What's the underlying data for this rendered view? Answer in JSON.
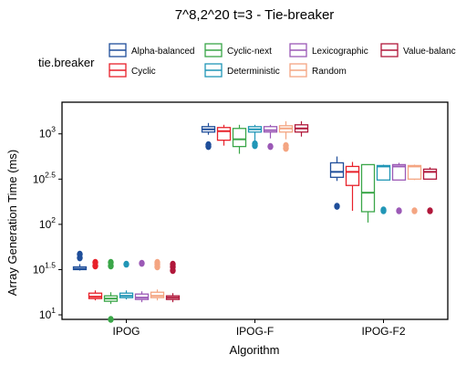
{
  "chart_data": {
    "type": "box",
    "title": "7^8,2^20 t=3 - Tie-breaker",
    "xlabel": "Algorithm",
    "ylabel": "Array Generation Time (ms)",
    "y_scale": "log10",
    "ylim": [
      0.95,
      3.35
    ],
    "y_ticks": [
      {
        "value": 1,
        "base": "10",
        "exp": "1"
      },
      {
        "value": 1.5,
        "base": "10",
        "exp": "1.5"
      },
      {
        "value": 2,
        "base": "10",
        "exp": "2"
      },
      {
        "value": 2.5,
        "base": "10",
        "exp": "2.5"
      },
      {
        "value": 3,
        "base": "10",
        "exp": "3"
      }
    ],
    "categories": [
      "IPOG",
      "IPOG-F",
      "IPOG-F2"
    ],
    "legend": {
      "title": "tie.breaker",
      "position": "top",
      "entries": [
        "Alpha-balanced",
        "Cyclic",
        "Cyclic-next",
        "Deterministic",
        "Lexicographic",
        "Random",
        "Value-balanced"
      ]
    },
    "series": [
      {
        "name": "Alpha-balanced",
        "color": "#1f4e9a",
        "boxes": [
          {
            "whisker_low": 1.49,
            "q1": 1.5,
            "median": 1.51,
            "q3": 1.53,
            "whisker_high": 1.56,
            "outliers": [
              1.63,
              1.67
            ]
          },
          {
            "whisker_low": 2.99,
            "q1": 3.02,
            "median": 3.05,
            "q3": 3.08,
            "whisker_high": 3.12,
            "outliers": [
              2.88,
              2.86
            ]
          },
          {
            "whisker_low": 2.48,
            "q1": 2.52,
            "median": 2.58,
            "q3": 2.68,
            "whisker_high": 2.75,
            "outliers": [
              2.2
            ]
          }
        ]
      },
      {
        "name": "Cyclic",
        "color": "#e8212a",
        "boxes": [
          {
            "whisker_low": 1.16,
            "q1": 1.18,
            "median": 1.2,
            "q3": 1.24,
            "whisker_high": 1.27,
            "outliers": [
              1.54,
              1.58
            ]
          },
          {
            "whisker_low": 2.87,
            "q1": 2.93,
            "median": 3.03,
            "q3": 3.07,
            "whisker_high": 3.1,
            "outliers": []
          },
          {
            "whisker_low": 2.15,
            "q1": 2.43,
            "median": 2.58,
            "q3": 2.64,
            "whisker_high": 2.69,
            "outliers": []
          }
        ]
      },
      {
        "name": "Cyclic-next",
        "color": "#3aa648",
        "boxes": [
          {
            "whisker_low": 1.12,
            "q1": 1.15,
            "median": 1.18,
            "q3": 1.21,
            "whisker_high": 1.25,
            "outliers": [
              1.54,
              1.58,
              0.95
            ]
          },
          {
            "whisker_low": 2.78,
            "q1": 2.86,
            "median": 2.94,
            "q3": 3.06,
            "whisker_high": 3.1,
            "outliers": []
          },
          {
            "whisker_low": 2.02,
            "q1": 2.14,
            "median": 2.35,
            "q3": 2.66,
            "whisker_high": 2.66,
            "outliers": []
          }
        ]
      },
      {
        "name": "Deterministic",
        "color": "#2196b6",
        "boxes": [
          {
            "whisker_low": 1.17,
            "q1": 1.19,
            "median": 1.21,
            "q3": 1.24,
            "whisker_high": 1.27,
            "outliers": [
              1.56
            ]
          },
          {
            "whisker_low": 2.91,
            "q1": 3.02,
            "median": 3.05,
            "q3": 3.08,
            "whisker_high": 3.1,
            "outliers": [
              2.89,
              2.87
            ]
          },
          {
            "whisker_low": 2.49,
            "q1": 2.49,
            "median": 2.64,
            "q3": 2.65,
            "whisker_high": 2.66,
            "outliers": [
              2.16,
              2.15
            ]
          }
        ]
      },
      {
        "name": "Lexicographic",
        "color": "#9b59b6",
        "boxes": [
          {
            "whisker_low": 1.14,
            "q1": 1.17,
            "median": 1.19,
            "q3": 1.23,
            "whisker_high": 1.26,
            "outliers": [
              1.57
            ]
          },
          {
            "whisker_low": 2.95,
            "q1": 3.02,
            "median": 3.04,
            "q3": 3.08,
            "whisker_high": 3.1,
            "outliers": [
              2.86
            ]
          },
          {
            "whisker_low": 2.49,
            "q1": 2.49,
            "median": 2.64,
            "q3": 2.66,
            "whisker_high": 2.68,
            "outliers": [
              2.15
            ]
          }
        ]
      },
      {
        "name": "Random",
        "color": "#f4a582",
        "boxes": [
          {
            "whisker_low": 1.16,
            "q1": 1.19,
            "median": 1.21,
            "q3": 1.25,
            "whisker_high": 1.28,
            "outliers": [
              1.56,
              1.58,
              1.53
            ]
          },
          {
            "whisker_low": 2.94,
            "q1": 3.02,
            "median": 3.06,
            "q3": 3.09,
            "whisker_high": 3.14,
            "outliers": [
              2.84,
              2.87
            ]
          },
          {
            "whisker_low": 2.49,
            "q1": 2.5,
            "median": 2.64,
            "q3": 2.65,
            "whisker_high": 2.66,
            "outliers": [
              2.15
            ]
          }
        ]
      },
      {
        "name": "Value-balanced",
        "color": "#b0173a",
        "boxes": [
          {
            "whisker_low": 1.14,
            "q1": 1.17,
            "median": 1.19,
            "q3": 1.21,
            "whisker_high": 1.24,
            "outliers": [
              1.49,
              1.53,
              1.56
            ]
          },
          {
            "whisker_low": 2.97,
            "q1": 3.02,
            "median": 3.06,
            "q3": 3.1,
            "whisker_high": 3.14,
            "outliers": []
          },
          {
            "whisker_low": 2.5,
            "q1": 2.5,
            "median": 2.58,
            "q3": 2.61,
            "whisker_high": 2.63,
            "outliers": [
              2.15
            ]
          }
        ]
      }
    ]
  }
}
